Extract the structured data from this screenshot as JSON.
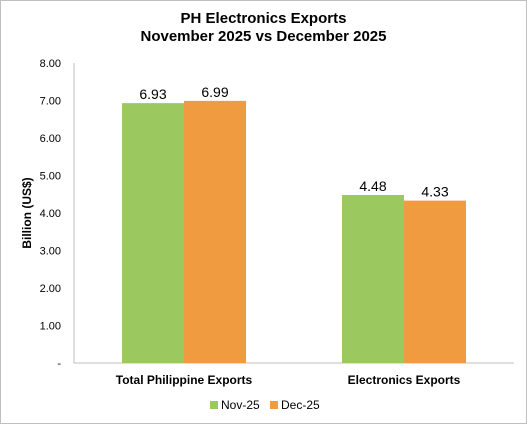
{
  "chart_data": {
    "type": "bar",
    "title": "PH Electronics Exports",
    "subtitle": "November 2025 vs December 2025",
    "ylabel": "Billion (US$)",
    "xlabel": "",
    "ylim": [
      0,
      8
    ],
    "yticks": [
      "-",
      "1.00",
      "2.00",
      "3.00",
      "4.00",
      "5.00",
      "6.00",
      "7.00",
      "8.00"
    ],
    "categories": [
      "Total Philippine Exports",
      "Electronics Exports"
    ],
    "series": [
      {
        "name": "Nov-25",
        "values": [
          6.93,
          4.48
        ],
        "labels": [
          "6.93",
          "4.48"
        ],
        "color": "#9bc95f"
      },
      {
        "name": "Dec-25",
        "values": [
          6.99,
          4.33
        ],
        "labels": [
          "6.99",
          "4.33"
        ],
        "color": "#f09b3f"
      }
    ],
    "grid": false,
    "legend": "bottom"
  }
}
